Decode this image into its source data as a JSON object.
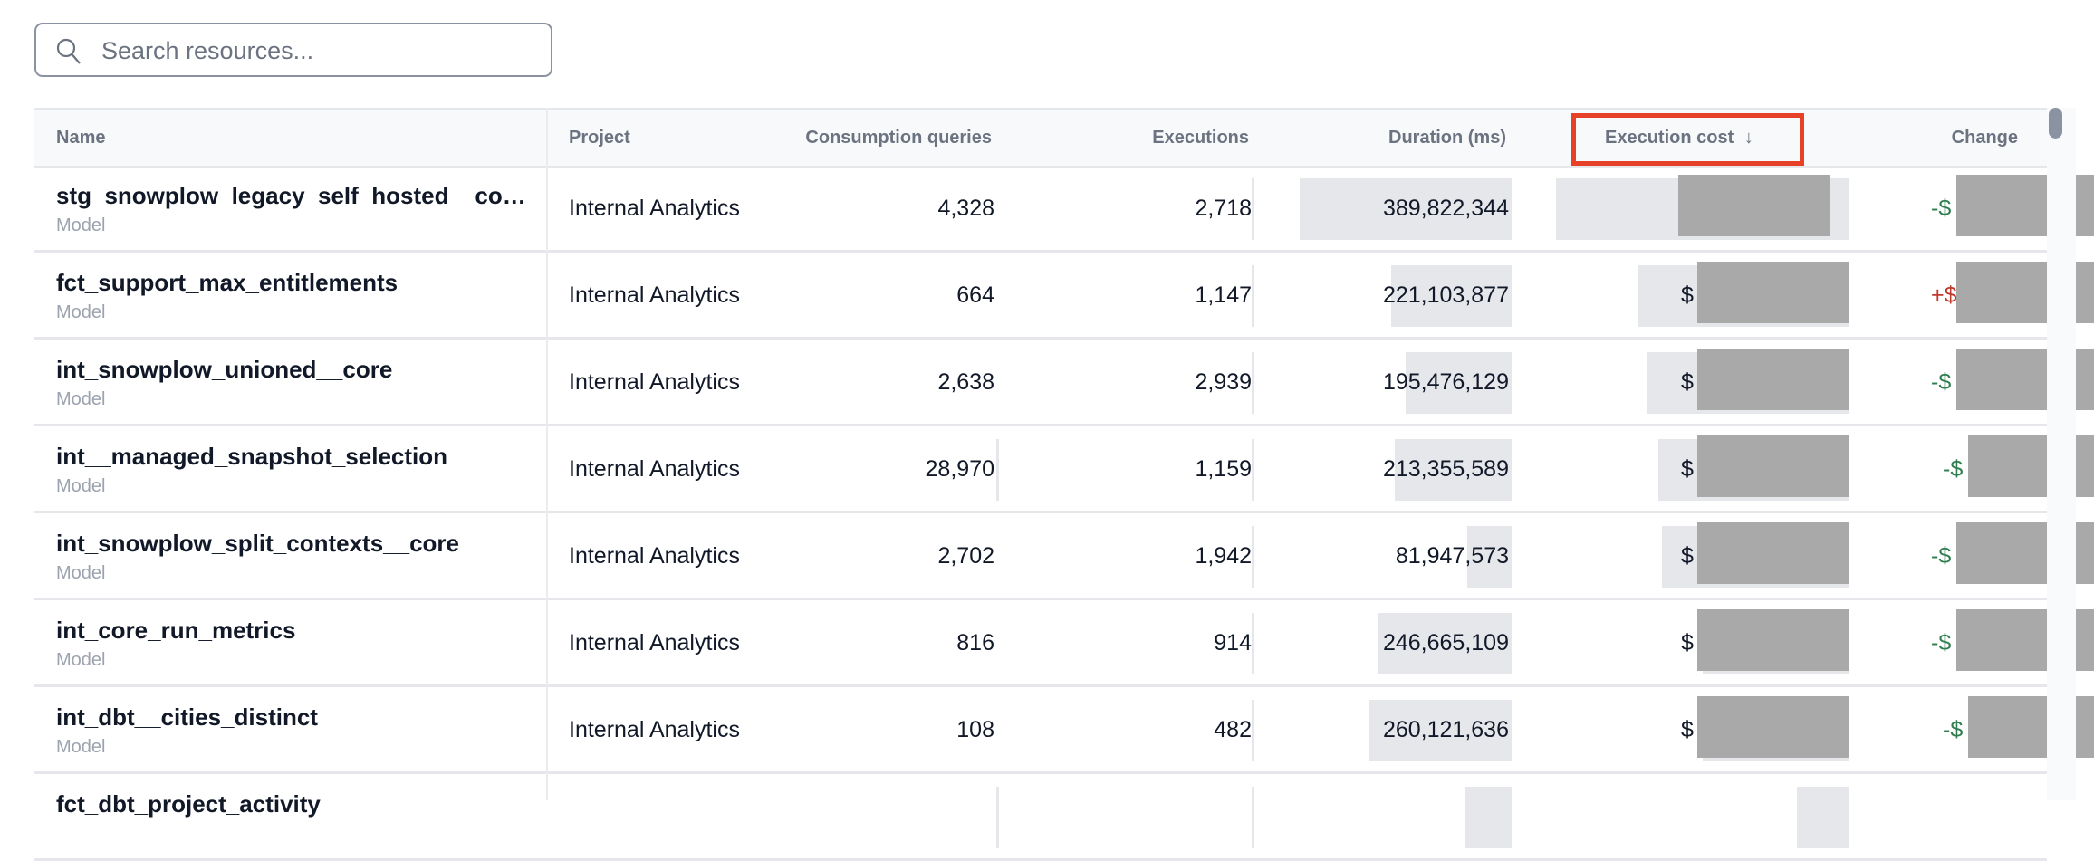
{
  "search": {
    "placeholder": "Search resources...",
    "value": "",
    "icon": "search-icon"
  },
  "table": {
    "columns": [
      "Name",
      "Project",
      "Consumption queries",
      "Executions",
      "Duration (ms)",
      "Execution cost",
      "Change"
    ],
    "sort": {
      "column": "Execution cost",
      "direction": "descending",
      "indicator": "↓"
    },
    "highlight_color": "#e8412a",
    "change_colors": {
      "negative": "#2f7d4f",
      "positive": "#c0392b"
    },
    "rows": [
      {
        "name": "stg_snowplow_legacy_self_hosted__cor...",
        "type": "Model",
        "project": "Internal Analytics",
        "consumption_queries": "4,328",
        "executions": "2,718",
        "duration": "389,822,344",
        "cost_prefix": "$",
        "change_prefix": "-$",
        "change_sign": "negative",
        "consumption_bar": 0,
        "executions_bar": 0.02,
        "duration_bar": 1.0,
        "cost_bar": 1.0
      },
      {
        "name": "fct_support_max_entitlements",
        "type": "Model",
        "project": "Internal Analytics",
        "consumption_queries": "664",
        "executions": "1,147",
        "duration": "221,103,877",
        "cost_prefix": "$",
        "change_prefix": "+$",
        "change_sign": "positive",
        "consumption_bar": 0,
        "executions_bar": 0.015,
        "duration_bar": 0.57,
        "cost_bar": 0.72
      },
      {
        "name": "int_snowplow_unioned__core",
        "type": "Model",
        "project": "Internal Analytics",
        "consumption_queries": "2,638",
        "executions": "2,939",
        "duration": "195,476,129",
        "cost_prefix": "$",
        "change_prefix": "-$",
        "change_sign": "negative",
        "consumption_bar": 0,
        "executions_bar": 0.02,
        "duration_bar": 0.5,
        "cost_bar": 0.69
      },
      {
        "name": "int__managed_snapshot_selection",
        "type": "Model",
        "project": "Internal Analytics",
        "consumption_queries": "28,970",
        "executions": "1,159",
        "duration": "213,355,589",
        "cost_prefix": "$",
        "change_prefix": "-$",
        "change_sign": "negative",
        "consumption_bar": 0.01,
        "executions_bar": 0.015,
        "duration_bar": 0.55,
        "cost_bar": 0.65
      },
      {
        "name": "int_snowplow_split_contexts__core",
        "type": "Model",
        "project": "Internal Analytics",
        "consumption_queries": "2,702",
        "executions": "1,942",
        "duration": "81,947,573",
        "cost_prefix": "$",
        "change_prefix": "-$",
        "change_sign": "negative",
        "consumption_bar": 0,
        "executions_bar": 0.015,
        "duration_bar": 0.21,
        "cost_bar": 0.64
      },
      {
        "name": "int_core_run_metrics",
        "type": "Model",
        "project": "Internal Analytics",
        "consumption_queries": "816",
        "executions": "914",
        "duration": "246,665,109",
        "cost_prefix": "$",
        "change_prefix": "-$",
        "change_sign": "negative",
        "consumption_bar": 0,
        "executions_bar": 0.01,
        "duration_bar": 0.63,
        "cost_bar": 0.5
      },
      {
        "name": "int_dbt__cities_distinct",
        "type": "Model",
        "project": "Internal Analytics",
        "consumption_queries": "108",
        "executions": "482",
        "duration": "260,121,636",
        "cost_prefix": "$",
        "change_prefix": "-$",
        "change_sign": "negative",
        "consumption_bar": 0,
        "executions_bar": 0.01,
        "duration_bar": 0.67,
        "cost_bar": 0.5
      },
      {
        "name": "fct_dbt_project_activity",
        "type": "",
        "project": "",
        "consumption_queries": "",
        "executions": "",
        "duration": "",
        "cost_prefix": "",
        "change_prefix": "",
        "change_sign": "negative",
        "consumption_bar": 0.01,
        "executions_bar": 0.01,
        "duration_bar": 0.22,
        "cost_bar": 0.18
      }
    ]
  }
}
